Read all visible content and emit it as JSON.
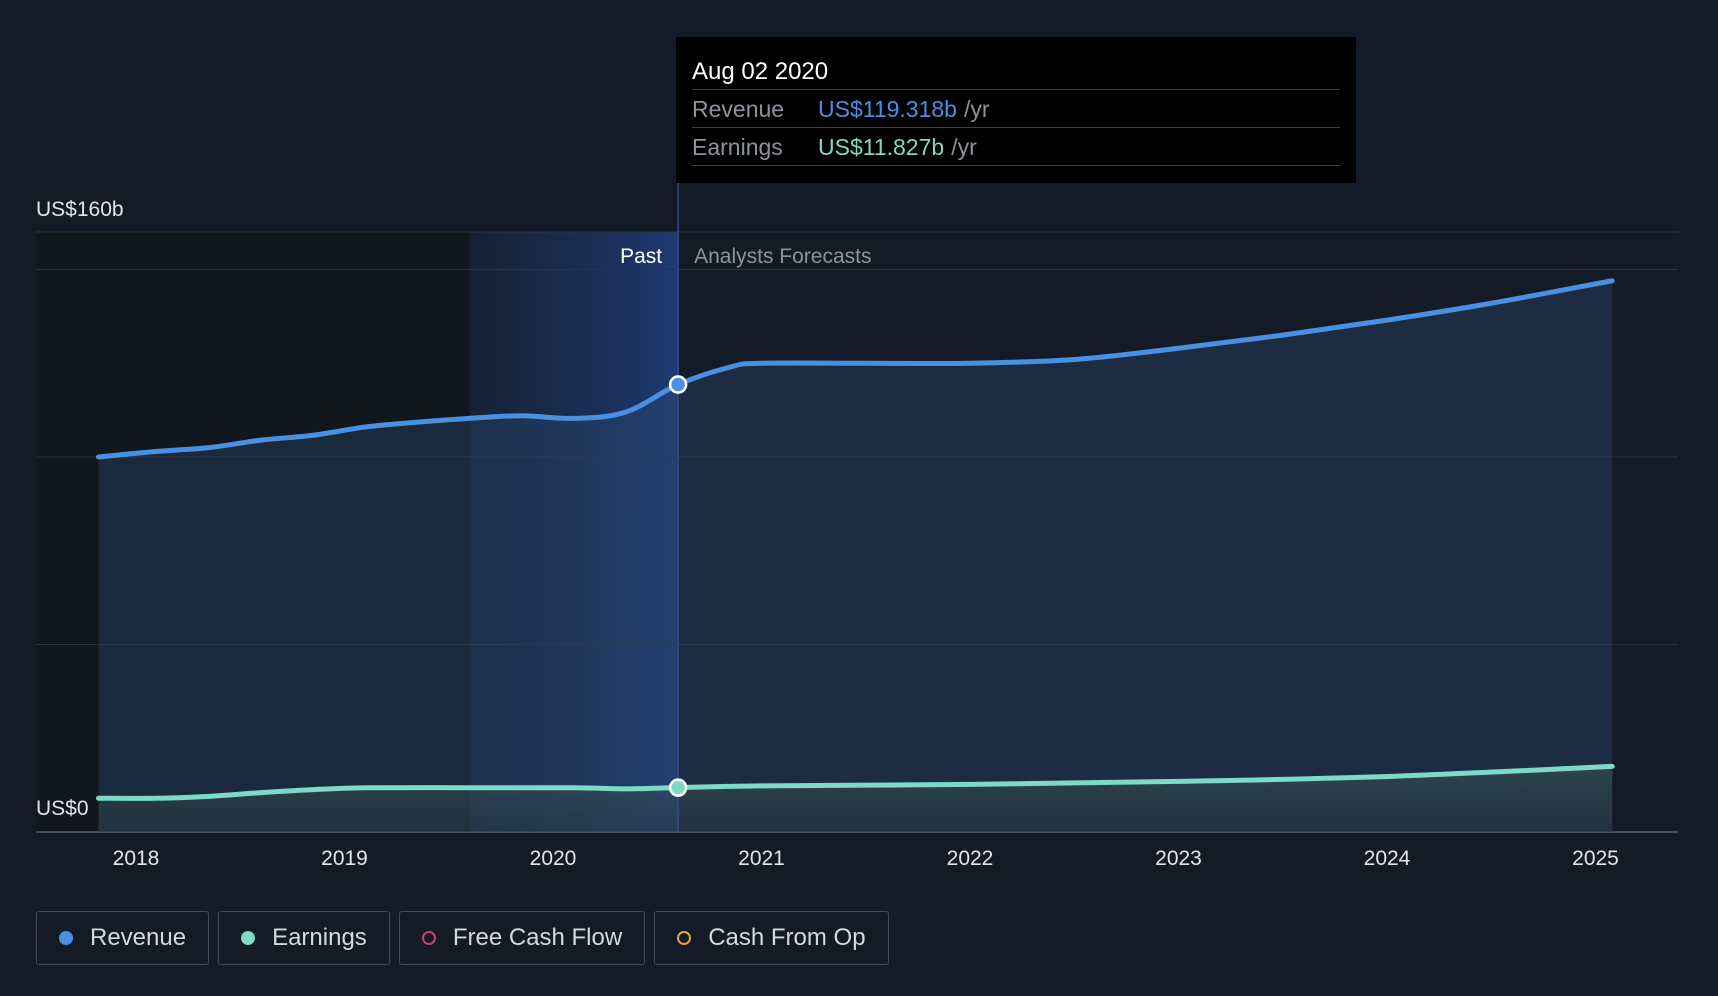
{
  "chart_data": {
    "type": "area",
    "x_unit": "year",
    "xlim": [
      2017.5,
      2025.4
    ],
    "ylim": [
      0,
      160
    ],
    "y_axis": {
      "top_label": "US$160b",
      "bottom_label": "US$0"
    },
    "x_ticks": [
      {
        "value": 2018,
        "label": "2018"
      },
      {
        "value": 2019,
        "label": "2019"
      },
      {
        "value": 2020,
        "label": "2020"
      },
      {
        "value": 2021,
        "label": "2021"
      },
      {
        "value": 2022,
        "label": "2022"
      },
      {
        "value": 2023,
        "label": "2023"
      },
      {
        "value": 2024,
        "label": "2024"
      },
      {
        "value": 2025,
        "label": "2025"
      }
    ],
    "gridlines_y": [
      0,
      50,
      100,
      150,
      160
    ],
    "past_region": {
      "start": 2019.6,
      "end": 2020.6,
      "label": "Past"
    },
    "forecast_label": "Analysts Forecasts",
    "series": [
      {
        "name": "Revenue",
        "color": "#4a90e2",
        "points": [
          [
            2017.82,
            100
          ],
          [
            2018.1,
            101.5
          ],
          [
            2018.35,
            102.5
          ],
          [
            2018.6,
            104.5
          ],
          [
            2018.85,
            105.8
          ],
          [
            2019.1,
            108
          ],
          [
            2019.35,
            109.3
          ],
          [
            2019.6,
            110.3
          ],
          [
            2019.85,
            111
          ],
          [
            2020.1,
            110.3
          ],
          [
            2020.35,
            112
          ],
          [
            2020.6,
            119.318
          ],
          [
            2020.85,
            124
          ],
          [
            2021.0,
            125
          ],
          [
            2021.5,
            125
          ],
          [
            2022.0,
            125
          ],
          [
            2022.5,
            126
          ],
          [
            2023.0,
            129
          ],
          [
            2023.5,
            132.5
          ],
          [
            2024.0,
            136.5
          ],
          [
            2024.5,
            141
          ],
          [
            2025.08,
            147
          ]
        ]
      },
      {
        "name": "Earnings",
        "color": "#7dd9c8",
        "points": [
          [
            2017.82,
            9
          ],
          [
            2018.1,
            9
          ],
          [
            2018.35,
            9.5
          ],
          [
            2018.6,
            10.5
          ],
          [
            2018.85,
            11.3
          ],
          [
            2019.1,
            11.8
          ],
          [
            2019.6,
            11.8
          ],
          [
            2020.1,
            11.8
          ],
          [
            2020.35,
            11.5
          ],
          [
            2020.6,
            11.827
          ],
          [
            2021.0,
            12.3
          ],
          [
            2022.0,
            12.7
          ],
          [
            2023.0,
            13.5
          ],
          [
            2024.0,
            14.8
          ],
          [
            2025.08,
            17.5
          ]
        ]
      }
    ],
    "highlight": {
      "x": 2020.6
    }
  },
  "tooltip": {
    "date": "Aug 02 2020",
    "rows": [
      {
        "label": "Revenue",
        "value": "US$119.318b",
        "unit": "/yr",
        "color": "#4a90e2"
      },
      {
        "label": "Earnings",
        "value": "US$11.827b",
        "unit": "/yr",
        "color": "#7dd9c8"
      }
    ]
  },
  "legend": [
    {
      "label": "Revenue",
      "color": "#4a90e2",
      "filled": true
    },
    {
      "label": "Earnings",
      "color": "#7dd9c8",
      "filled": true
    },
    {
      "label": "Free Cash Flow",
      "color": "#c2417a",
      "filled": false
    },
    {
      "label": "Cash From Op",
      "color": "#d8a84a",
      "filled": false
    }
  ]
}
